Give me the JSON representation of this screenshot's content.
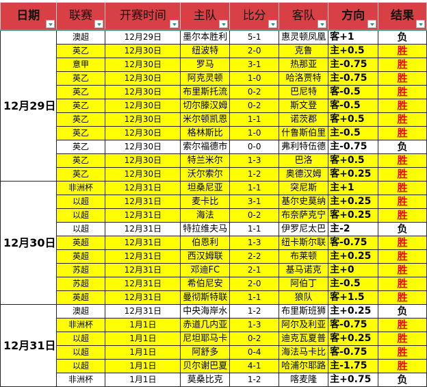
{
  "headers": {
    "date": "日期",
    "league": "联赛",
    "time": "开赛时间",
    "home": "主队",
    "score": "比分",
    "away": "客队",
    "direction": "方向",
    "result": "结果"
  },
  "colors": {
    "header": "#d94045",
    "highlight": "#ffff00",
    "win": "#ff0000"
  },
  "groups": [
    {
      "date": "12月29日",
      "rows": [
        {
          "league": "澳超",
          "time": "12月29日",
          "home": "墨尔本胜利",
          "score": "5-1",
          "away": "惠灵顿凤凰",
          "direction": "客+1",
          "result": "负"
        },
        {
          "league": "英乙",
          "time": "12月30日",
          "home": "纽波特",
          "score": "2-0",
          "away": "克鲁",
          "direction": "主+0.5",
          "result": "胜"
        },
        {
          "league": "意甲",
          "time": "12月30日",
          "home": "罗马",
          "score": "3-1",
          "away": "热那亚",
          "direction": "主-0.75",
          "result": "胜"
        },
        {
          "league": "英乙",
          "time": "12月30日",
          "home": "阿克灵顿",
          "score": "1-0",
          "away": "哈洛贾特",
          "direction": "主-0.75",
          "result": "胜"
        },
        {
          "league": "英乙",
          "time": "12月30日",
          "home": "布里斯托流",
          "score": "0-2",
          "away": "巴尼特",
          "direction": "客-0.5",
          "result": "胜"
        },
        {
          "league": "英乙",
          "time": "12月30日",
          "home": "切尔滕汉姆",
          "score": "0-2",
          "away": "斯文登",
          "direction": "客-0.5",
          "result": "胜"
        },
        {
          "league": "英乙",
          "time": "12月30日",
          "home": "米尔顿凯恩",
          "score": "1-1",
          "away": "诺茨郡",
          "direction": "客+0.5",
          "result": "胜"
        },
        {
          "league": "英乙",
          "time": "12月30日",
          "home": "格林斯比",
          "score": "1-0",
          "away": "什鲁斯伯里",
          "direction": "主-0.5",
          "result": "胜"
        },
        {
          "league": "英乙",
          "time": "12月30日",
          "home": "索尔福德市",
          "score": "0-0",
          "away": "弗利特伍德",
          "direction": "主-0.75",
          "result": "负"
        },
        {
          "league": "英乙",
          "time": "12月30日",
          "home": "特兰米尔",
          "score": "1-3",
          "away": "巴洛",
          "direction": "客+0.5",
          "result": "胜"
        },
        {
          "league": "英乙",
          "time": "12月30日",
          "home": "沃尔索尔",
          "score": "1-2",
          "away": "奥德汉姆",
          "direction": "客+0.25",
          "result": "胜"
        }
      ]
    },
    {
      "date": "12月30日",
      "rows": [
        {
          "league": "非洲杯",
          "time": "12月31日",
          "home": "坦桑尼亚",
          "score": "1-1",
          "away": "突尼斯",
          "direction": "主+1",
          "result": "胜"
        },
        {
          "league": "以超",
          "time": "12月31日",
          "home": "麦卡比",
          "score": "3-1",
          "away": "基尔史莫纳",
          "direction": "主+0.25",
          "result": "胜"
        },
        {
          "league": "以超",
          "time": "12月31日",
          "home": "海法",
          "score": "0-2",
          "away": "布奈萨克宁",
          "direction": "客+0.25",
          "result": "胜"
        },
        {
          "league": "以超",
          "time": "12月31日",
          "home": "特拉维夫马",
          "score": "1-1",
          "away": "伊罗尼太巴",
          "direction": "主-2",
          "result": "负"
        },
        {
          "league": "英超",
          "time": "12月31日",
          "home": "伯恩利",
          "score": "1-3",
          "away": "纽卡斯尔联",
          "direction": "客-0.75",
          "result": "胜"
        },
        {
          "league": "英超",
          "time": "12月31日",
          "home": "西汉姆联",
          "score": "2-2",
          "away": "布莱顿",
          "direction": "主+0.25",
          "result": "胜"
        },
        {
          "league": "苏超",
          "time": "12月31日",
          "home": "邓迪FC",
          "score": "2-1",
          "away": "基马诺克",
          "direction": "主+0",
          "result": "胜"
        },
        {
          "league": "苏超",
          "time": "12月31日",
          "home": "希伯尼安",
          "score": "2-0",
          "away": "阿伯丁",
          "direction": "主-0.5",
          "result": "胜"
        },
        {
          "league": "英超",
          "time": "12月31日",
          "home": "曼彻斯特联",
          "score": "1-1",
          "away": "狼队",
          "direction": "客+1.5",
          "result": "胜"
        }
      ]
    },
    {
      "date": "12月31日",
      "rows": [
        {
          "league": "澳超",
          "time": "12月31日",
          "home": "中央海岸水",
          "score": "1-2",
          "away": "布里斯班狮",
          "direction": "主+0.25",
          "result": "负"
        },
        {
          "league": "非洲杯",
          "time": "1月1日",
          "home": "赤道几内亚",
          "score": "1-3",
          "away": "阿尔及利亚",
          "direction": "客-0.75",
          "result": "胜"
        },
        {
          "league": "以超",
          "time": "1月1日",
          "home": "尼坦耶马卡",
          "score": "0-2",
          "away": "迪克瓦夏普",
          "direction": "客+0.25",
          "result": "胜"
        },
        {
          "league": "以超",
          "time": "1月1日",
          "home": "阿舒多",
          "score": "0-4",
          "away": "海法马卡比",
          "direction": "客-0.75",
          "result": "胜"
        },
        {
          "league": "以超",
          "time": "1月1日",
          "home": "贝尔谢巴夏",
          "score": "4-1",
          "away": "哈浦尔耶路",
          "direction": "主-1.75",
          "result": "胜"
        },
        {
          "league": "非洲杯",
          "time": "1月1日",
          "home": "莫桑比克",
          "score": "1-2",
          "away": "喀麦隆",
          "direction": "主+0.75",
          "result": "负"
        }
      ]
    }
  ]
}
